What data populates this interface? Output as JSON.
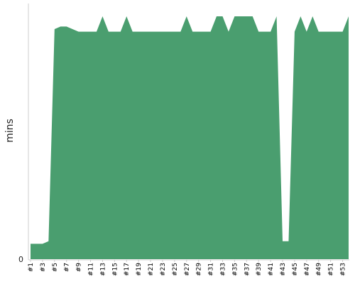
{
  "chart_data": {
    "type": "area",
    "ylabel": "mins",
    "y_tick_labels": [
      "0"
    ],
    "ylim": [
      0,
      100
    ],
    "color": "#4a9e6f",
    "grid": false,
    "legend": "none",
    "x_tick_labels": [
      "#1",
      "#3",
      "#5",
      "#7",
      "#9",
      "#11",
      "#13",
      "#15",
      "#17",
      "#19",
      "#21",
      "#23",
      "#25",
      "#27",
      "#29",
      "#31",
      "#33",
      "#35",
      "#37",
      "#39",
      "#41",
      "#43",
      "#45",
      "#47",
      "#49",
      "#51",
      "#53"
    ],
    "x": [
      "#1",
      "#2",
      "#3",
      "#4",
      "#5",
      "#6",
      "#7",
      "#8",
      "#9",
      "#10",
      "#11",
      "#12",
      "#13",
      "#14",
      "#15",
      "#16",
      "#17",
      "#18",
      "#19",
      "#20",
      "#21",
      "#22",
      "#23",
      "#24",
      "#25",
      "#26",
      "#27",
      "#28",
      "#29",
      "#30",
      "#31",
      "#32",
      "#33",
      "#34",
      "#35",
      "#36",
      "#37",
      "#38",
      "#39",
      "#40",
      "#41",
      "#42",
      "#43",
      "#44",
      "#45",
      "#46",
      "#47",
      "#48",
      "#49",
      "#50",
      "#51",
      "#52",
      "#53",
      "#54"
    ],
    "values": [
      6,
      6,
      6,
      7,
      90,
      91,
      91,
      90,
      89,
      89,
      89,
      89,
      95,
      89,
      89,
      89,
      95,
      89,
      89,
      89,
      89,
      89,
      89,
      89,
      89,
      89,
      95,
      89,
      89,
      89,
      89,
      95,
      95,
      89,
      95,
      95,
      95,
      95,
      89,
      89,
      89,
      95,
      7,
      7,
      89,
      95,
      89,
      95,
      89,
      89,
      89,
      89,
      89,
      95
    ]
  }
}
